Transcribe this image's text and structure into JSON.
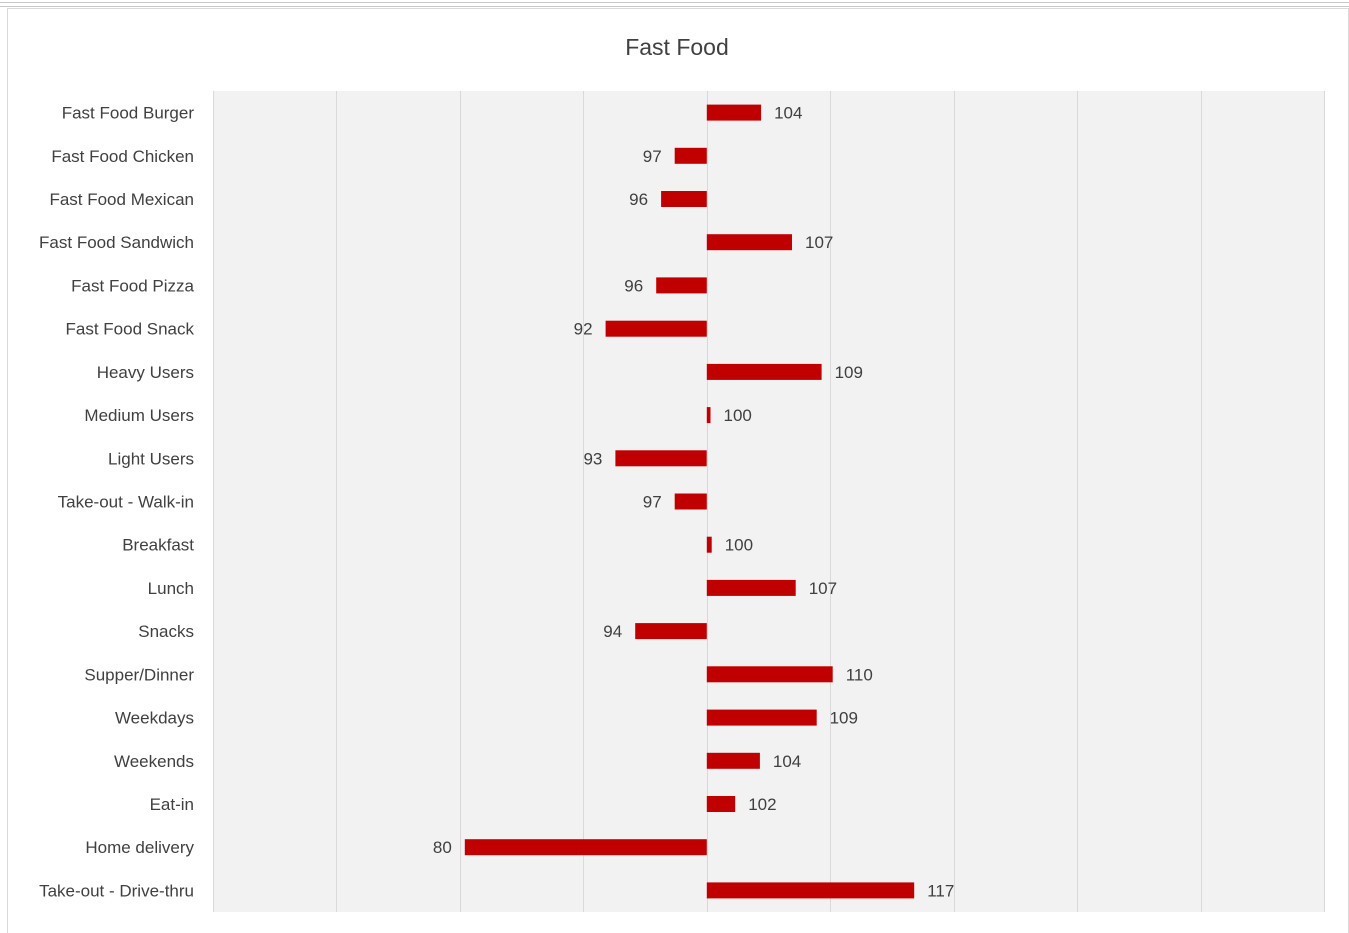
{
  "chart_data": {
    "type": "bar",
    "orientation": "horizontal",
    "title": "Fast Food",
    "xlabel": "",
    "ylabel": "",
    "baseline": 100,
    "xlim": [
      60,
      150
    ],
    "grid": true,
    "legend": "none",
    "bar_color": "#c00000",
    "plot_background": "#f2f2f2",
    "categories": [
      "Fast Food Burger",
      "Fast Food Chicken",
      "Fast Food Mexican",
      "Fast Food Sandwich",
      "Fast Food Pizza",
      "Fast Food Snack",
      "Heavy Users",
      "Medium Users",
      "Light Users",
      "Take-out - Walk-in",
      "Breakfast",
      "Lunch",
      "Snacks",
      "Supper/Dinner",
      "Weekdays",
      "Weekends",
      "Eat-in",
      "Home delivery",
      "Take-out - Drive-thru"
    ],
    "values": [
      104,
      97,
      96,
      107,
      96,
      92,
      109,
      100,
      93,
      97,
      100,
      107,
      94,
      110,
      109,
      104,
      102,
      80,
      117
    ],
    "plot_values": [
      104.4,
      97.4,
      96.3,
      106.9,
      95.9,
      91.8,
      109.3,
      100.3,
      92.6,
      97.4,
      100.4,
      107.2,
      94.2,
      110.2,
      108.9,
      104.3,
      102.3,
      80.4,
      116.8
    ]
  }
}
